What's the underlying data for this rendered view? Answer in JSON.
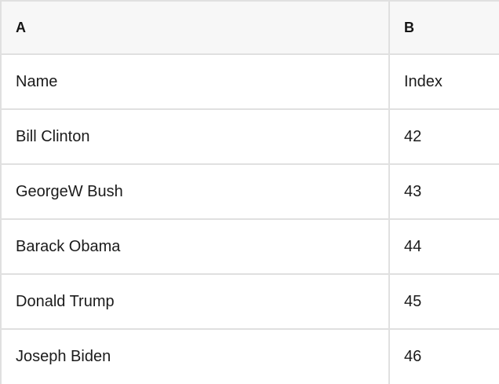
{
  "table": {
    "column_headers": {
      "a": "A",
      "b": "B"
    },
    "rows": [
      {
        "a": "Name",
        "b": "Index"
      },
      {
        "a": "Bill Clinton",
        "b": "42"
      },
      {
        "a": "GeorgeW Bush",
        "b": "43"
      },
      {
        "a": "Barack Obama",
        "b": "44"
      },
      {
        "a": "Donald Trump",
        "b": "45"
      },
      {
        "a": "Joseph Biden",
        "b": "46"
      }
    ]
  },
  "colors": {
    "border": "#e0e0e0",
    "header_background": "#f7f7f7",
    "cell_background": "#ffffff",
    "text": "#1b1b1b"
  }
}
